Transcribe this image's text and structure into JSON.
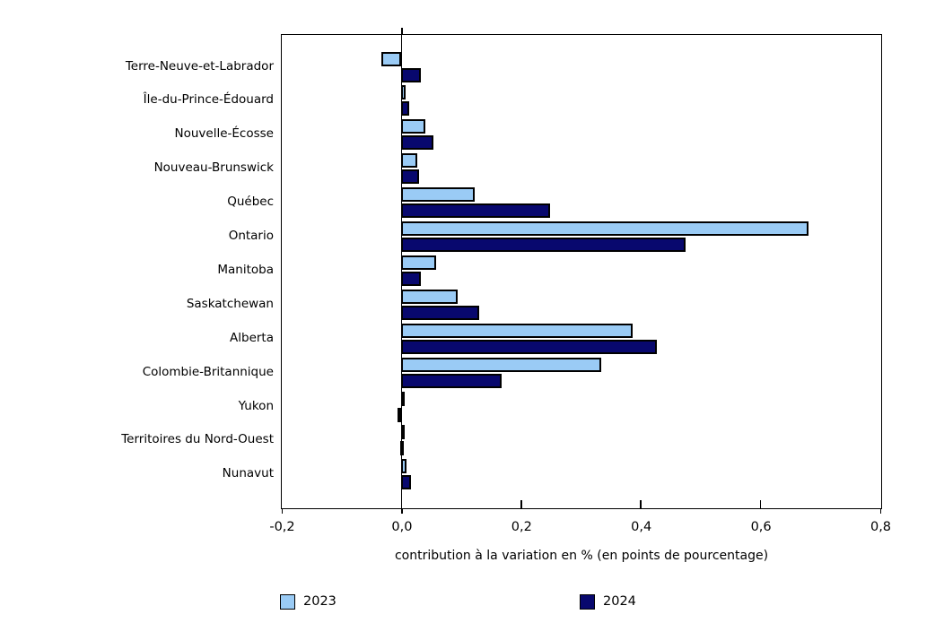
{
  "chart_data": {
    "type": "bar",
    "orientation": "horizontal",
    "categories": [
      "Terre-Neuve-et-Labrador",
      "Île-du-Prince-Édouard",
      "Nouvelle-Écosse",
      "Nouveau-Brunswick",
      "Québec",
      "Ontario",
      "Manitoba",
      "Saskatchewan",
      "Alberta",
      "Colombie-Britannique",
      "Yukon",
      "Territoires du Nord-Ouest",
      "Nunavut"
    ],
    "series": [
      {
        "name": "2023",
        "color": "#9ACBF5",
        "values": [
          -0.034,
          0.007,
          0.04,
          0.026,
          0.122,
          0.68,
          0.058,
          0.094,
          0.386,
          0.334,
          0.004,
          0.002,
          0.008
        ]
      },
      {
        "name": "2024",
        "color": "#08086E",
        "values": [
          0.033,
          0.013,
          0.054,
          0.03,
          0.249,
          0.475,
          0.033,
          0.13,
          0.426,
          0.167,
          -0.006,
          -0.002,
          0.016
        ]
      }
    ],
    "xlabel": "contribution à la variation en % (en points de pourcentage)",
    "xlim": [
      -0.2,
      0.8
    ],
    "xticks": [
      -0.2,
      0.0,
      0.2,
      0.4,
      0.6,
      0.8
    ],
    "xtick_labels": [
      "-0,2",
      "0,0",
      "0,2",
      "0,4",
      "0,6",
      "0,8"
    ],
    "inner_tick_values": [
      0.2,
      0.4,
      0.6
    ],
    "outer_tick_values": [
      -0.2,
      0.0,
      0.8
    ],
    "grid": false,
    "legend_position": "bottom",
    "bar_border_color": "#000000",
    "title": ""
  }
}
